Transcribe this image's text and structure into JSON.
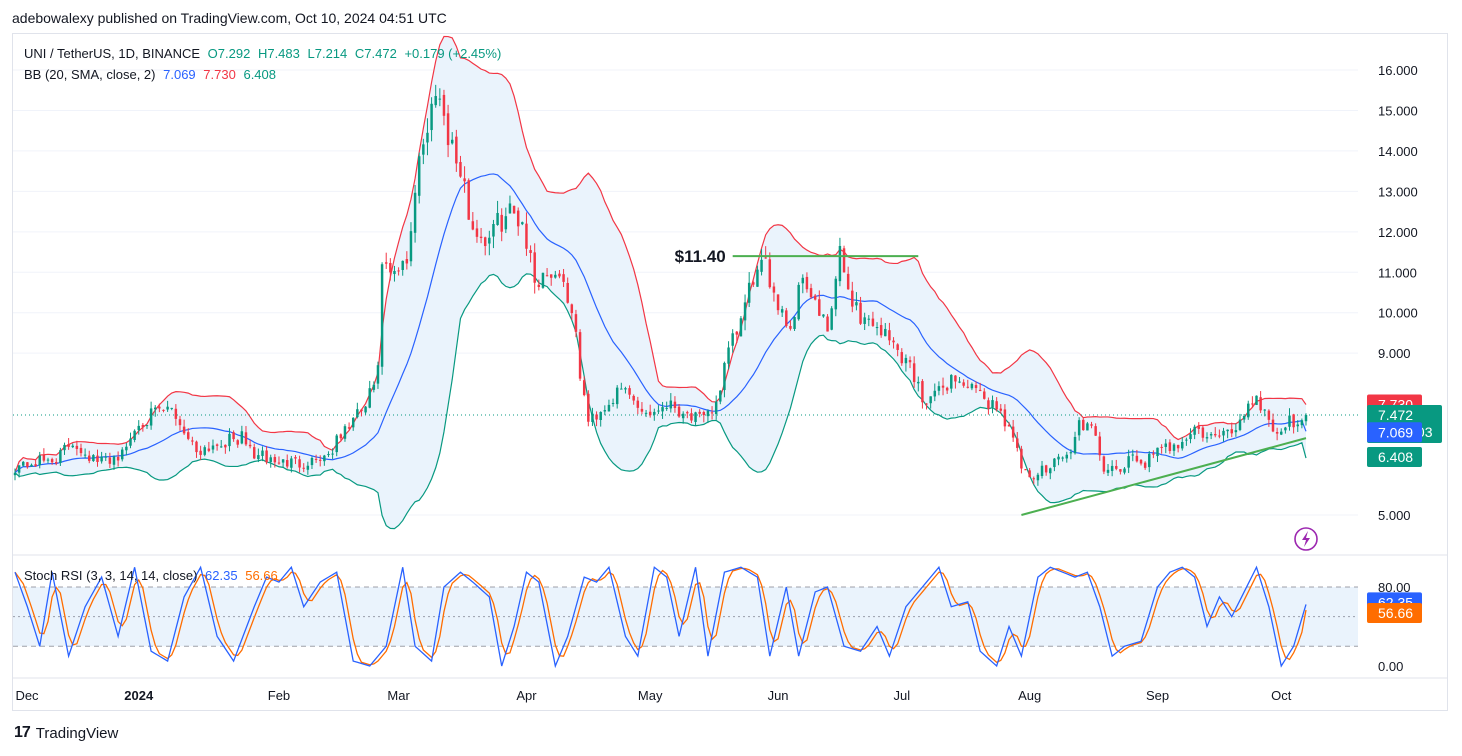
{
  "header": {
    "published_line": "adebowalexy published on TradingView.com, Oct 10, 2024 04:51 UTC"
  },
  "legend": {
    "symbol": "UNI / TetherUS, 1D, BINANCE",
    "open": "O7.292",
    "high": "H7.483",
    "low": "L7.214",
    "close": "C7.472",
    "change": "+0.179 (+2.45%)",
    "bb_label": "BB (20, SMA, close, 2)",
    "bb_basis": "7.069",
    "bb_upper": "7.730",
    "bb_lower": "6.408",
    "stoch_label": "Stoch RSI (3, 3, 14, 14, close)",
    "stoch_k": "62.35",
    "stoch_d": "56.66"
  },
  "annotation": {
    "resistance_label": "$11.40"
  },
  "price_tags": {
    "bb_upper": "7.730",
    "last": "7.472",
    "countdown": "19:08:03",
    "bb_basis": "7.069",
    "bb_lower": "6.408",
    "stoch_k": "62.35",
    "stoch_d": "56.66"
  },
  "branding": {
    "logo": "17",
    "name": "TradingView"
  },
  "colors": {
    "up": "#089981",
    "down": "#f23645",
    "bb_basis": "#2962ff",
    "bb_upper": "#f23645",
    "bb_lower": "#089981",
    "bb_fill": "#eaf3fc",
    "stoch_k": "#2962ff",
    "stoch_d": "#ff6d00",
    "trendline": "#4caf50"
  },
  "chart_data": {
    "type": "candlestick",
    "price_axis": {
      "ticks": [
        5.0,
        9.0,
        10.0,
        11.0,
        12.0,
        13.0,
        14.0,
        15.0,
        16.0
      ],
      "tick_labels": [
        "5.000",
        "9.000",
        "10.000",
        "11.000",
        "12.000",
        "13.000",
        "14.000",
        "15.000",
        "16.000"
      ],
      "range": [
        4.0,
        16.8
      ]
    },
    "stoch_axis": {
      "ticks": [
        0,
        80
      ],
      "tick_labels": [
        "0.00",
        "80.00"
      ],
      "range": [
        -10,
        105
      ],
      "bands": [
        20,
        50,
        80
      ]
    },
    "time_axis": {
      "labels": [
        "Dec",
        "2024",
        "Feb",
        "Mar",
        "Apr",
        "May",
        "Jun",
        "Jul",
        "Aug",
        "Sep",
        "Oct"
      ],
      "label_day_index": [
        0,
        30,
        64,
        93,
        124,
        154,
        185,
        215,
        246,
        277,
        307
      ]
    },
    "last_price": 7.472,
    "resistance": {
      "level": 11.4,
      "from_day": 174,
      "to_day": 219
    },
    "support_trendline": [
      {
        "day": 244,
        "price": 5.0
      },
      {
        "day": 313,
        "price": 6.9
      }
    ],
    "close_anchors": [
      [
        0,
        6.2
      ],
      [
        10,
        6.4
      ],
      [
        14,
        6.8
      ],
      [
        20,
        6.3
      ],
      [
        26,
        6.5
      ],
      [
        30,
        7.3
      ],
      [
        34,
        7.5
      ],
      [
        38,
        7.6
      ],
      [
        44,
        6.6
      ],
      [
        50,
        6.8
      ],
      [
        55,
        6.9
      ],
      [
        58,
        6.5
      ],
      [
        64,
        6.3
      ],
      [
        70,
        6.3
      ],
      [
        76,
        6.5
      ],
      [
        80,
        7.1
      ],
      [
        85,
        7.7
      ],
      [
        88,
        8.5
      ],
      [
        89,
        11.3
      ],
      [
        91,
        10.8
      ],
      [
        95,
        11.2
      ],
      [
        98,
        14.0
      ],
      [
        100,
        14.4
      ],
      [
        102,
        15.7
      ],
      [
        105,
        14.5
      ],
      [
        108,
        13.4
      ],
      [
        111,
        12.1
      ],
      [
        114,
        11.8
      ],
      [
        117,
        12.2
      ],
      [
        120,
        12.5
      ],
      [
        123,
        12.3
      ],
      [
        126,
        10.8
      ],
      [
        129,
        11.0
      ],
      [
        132,
        11.0
      ],
      [
        135,
        10.1
      ],
      [
        137,
        8.5
      ],
      [
        139,
        7.3
      ],
      [
        142,
        7.6
      ],
      [
        145,
        7.9
      ],
      [
        148,
        8.1
      ],
      [
        151,
        7.7
      ],
      [
        154,
        7.5
      ],
      [
        158,
        7.8
      ],
      [
        163,
        7.5
      ],
      [
        167,
        7.3
      ],
      [
        170,
        7.8
      ],
      [
        173,
        9.0
      ],
      [
        176,
        9.8
      ],
      [
        179,
        10.9
      ],
      [
        182,
        11.1
      ],
      [
        185,
        10.3
      ],
      [
        188,
        9.6
      ],
      [
        191,
        11.0
      ],
      [
        194,
        10.2
      ],
      [
        197,
        9.5
      ],
      [
        200,
        11.4
      ],
      [
        202,
        10.6
      ],
      [
        205,
        9.9
      ],
      [
        209,
        9.7
      ],
      [
        213,
        9.2
      ],
      [
        217,
        8.7
      ],
      [
        220,
        7.9
      ],
      [
        224,
        8.0
      ],
      [
        227,
        8.4
      ],
      [
        231,
        8.2
      ],
      [
        234,
        7.9
      ],
      [
        238,
        7.7
      ],
      [
        241,
        7.2
      ],
      [
        244,
        6.2
      ],
      [
        246,
        5.8
      ],
      [
        249,
        6.1
      ],
      [
        252,
        6.4
      ],
      [
        256,
        6.5
      ],
      [
        258,
        7.3
      ],
      [
        261,
        7.1
      ],
      [
        264,
        6.2
      ],
      [
        267,
        6.0
      ],
      [
        271,
        6.4
      ],
      [
        274,
        6.3
      ],
      [
        278,
        6.6
      ],
      [
        282,
        6.8
      ],
      [
        286,
        7.1
      ],
      [
        290,
        6.9
      ],
      [
        294,
        7.0
      ],
      [
        297,
        7.3
      ],
      [
        299,
        7.8
      ],
      [
        301,
        7.9
      ],
      [
        304,
        7.4
      ],
      [
        306,
        7.0
      ],
      [
        309,
        7.3
      ],
      [
        313,
        7.472
      ]
    ],
    "stoch_k_anchors": [
      [
        0,
        95
      ],
      [
        3,
        60
      ],
      [
        6,
        20
      ],
      [
        9,
        95
      ],
      [
        13,
        10
      ],
      [
        17,
        60
      ],
      [
        21,
        90
      ],
      [
        25,
        30
      ],
      [
        29,
        100
      ],
      [
        33,
        15
      ],
      [
        37,
        5
      ],
      [
        41,
        70
      ],
      [
        45,
        100
      ],
      [
        49,
        30
      ],
      [
        53,
        5
      ],
      [
        58,
        60
      ],
      [
        61,
        90
      ],
      [
        64,
        85
      ],
      [
        67,
        100
      ],
      [
        70,
        60
      ],
      [
        74,
        85
      ],
      [
        78,
        95
      ],
      [
        82,
        5
      ],
      [
        86,
        0
      ],
      [
        90,
        20
      ],
      [
        94,
        100
      ],
      [
        97,
        20
      ],
      [
        101,
        5
      ],
      [
        104,
        80
      ],
      [
        108,
        95
      ],
      [
        111,
        85
      ],
      [
        115,
        70
      ],
      [
        118,
        0
      ],
      [
        121,
        40
      ],
      [
        124,
        95
      ],
      [
        127,
        85
      ],
      [
        131,
        0
      ],
      [
        134,
        30
      ],
      [
        138,
        90
      ],
      [
        141,
        85
      ],
      [
        144,
        100
      ],
      [
        148,
        30
      ],
      [
        151,
        10
      ],
      [
        155,
        100
      ],
      [
        158,
        90
      ],
      [
        161,
        30
      ],
      [
        165,
        100
      ],
      [
        168,
        10
      ],
      [
        172,
        95
      ],
      [
        176,
        100
      ],
      [
        180,
        90
      ],
      [
        183,
        10
      ],
      [
        187,
        80
      ],
      [
        190,
        10
      ],
      [
        194,
        75
      ],
      [
        197,
        80
      ],
      [
        201,
        20
      ],
      [
        205,
        15
      ],
      [
        209,
        40
      ],
      [
        212,
        10
      ],
      [
        216,
        60
      ],
      [
        220,
        80
      ],
      [
        224,
        100
      ],
      [
        227,
        60
      ],
      [
        231,
        65
      ],
      [
        234,
        15
      ],
      [
        238,
        0
      ],
      [
        241,
        40
      ],
      [
        244,
        10
      ],
      [
        248,
        90
      ],
      [
        251,
        100
      ],
      [
        254,
        95
      ],
      [
        257,
        90
      ],
      [
        260,
        95
      ],
      [
        263,
        60
      ],
      [
        266,
        10
      ],
      [
        269,
        20
      ],
      [
        273,
        25
      ],
      [
        277,
        80
      ],
      [
        280,
        95
      ],
      [
        283,
        100
      ],
      [
        286,
        90
      ],
      [
        289,
        40
      ],
      [
        292,
        70
      ],
      [
        295,
        50
      ],
      [
        298,
        75
      ],
      [
        301,
        100
      ],
      [
        304,
        60
      ],
      [
        307,
        0
      ],
      [
        310,
        20
      ],
      [
        313,
        62.35
      ]
    ],
    "bb_upper_last": 7.73,
    "bb_basis_last": 7.069,
    "bb_lower_last": 6.408,
    "stoch_k_last": 62.35,
    "stoch_d_last": 56.66
  }
}
